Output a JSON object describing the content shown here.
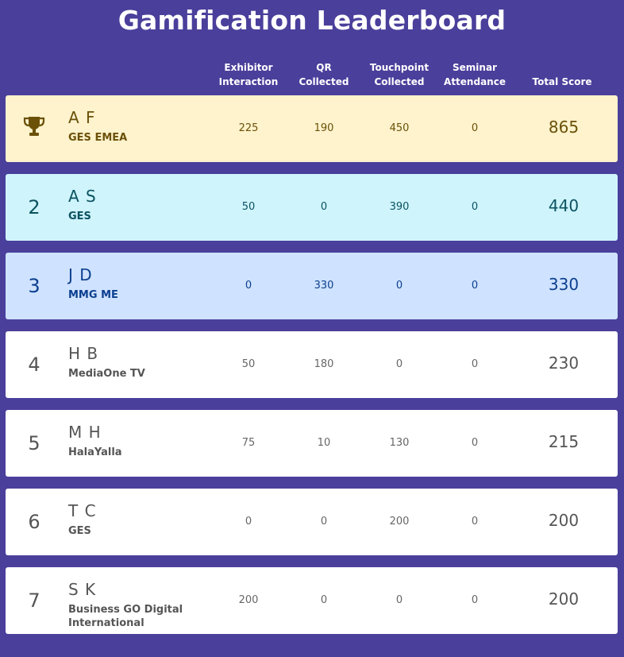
{
  "page": {
    "title": "Gamification Leaderboard"
  },
  "columns": {
    "exhibitor": [
      "Exhibitor",
      "Interaction"
    ],
    "qr": [
      "QR",
      "Collected"
    ],
    "touchpoint": [
      "Touchpoint",
      "Collected"
    ],
    "seminar": [
      "Seminar",
      "Attendance"
    ],
    "total": [
      "Total Score"
    ]
  },
  "icons": {
    "first_place": "trophy-icon"
  },
  "colors": {
    "background": "#4a3f9b",
    "first": "#fef3cd",
    "second": "#cff4fc",
    "third": "#cfe2ff",
    "default": "#ffffff"
  },
  "rows": [
    {
      "rank": "1",
      "name": "A F",
      "company": "GES EMEA",
      "exhibitor": "225",
      "qr": "190",
      "touchpoint": "450",
      "seminar": "0",
      "total": "865"
    },
    {
      "rank": "2",
      "name": "A S",
      "company": "GES",
      "exhibitor": "50",
      "qr": "0",
      "touchpoint": "390",
      "seminar": "0",
      "total": "440"
    },
    {
      "rank": "3",
      "name": "J D",
      "company": "MMG ME",
      "exhibitor": "0",
      "qr": "330",
      "touchpoint": "0",
      "seminar": "0",
      "total": "330"
    },
    {
      "rank": "4",
      "name": "H B",
      "company": "MediaOne TV",
      "exhibitor": "50",
      "qr": "180",
      "touchpoint": "0",
      "seminar": "0",
      "total": "230"
    },
    {
      "rank": "5",
      "name": "M H",
      "company": "HalaYalla",
      "exhibitor": "75",
      "qr": "10",
      "touchpoint": "130",
      "seminar": "0",
      "total": "215"
    },
    {
      "rank": "6",
      "name": "T C",
      "company": "GES",
      "exhibitor": "0",
      "qr": "0",
      "touchpoint": "200",
      "seminar": "0",
      "total": "200"
    },
    {
      "rank": "7",
      "name": "S K",
      "company": "Business GO Digital International",
      "exhibitor": "200",
      "qr": "0",
      "touchpoint": "0",
      "seminar": "0",
      "total": "200"
    }
  ]
}
